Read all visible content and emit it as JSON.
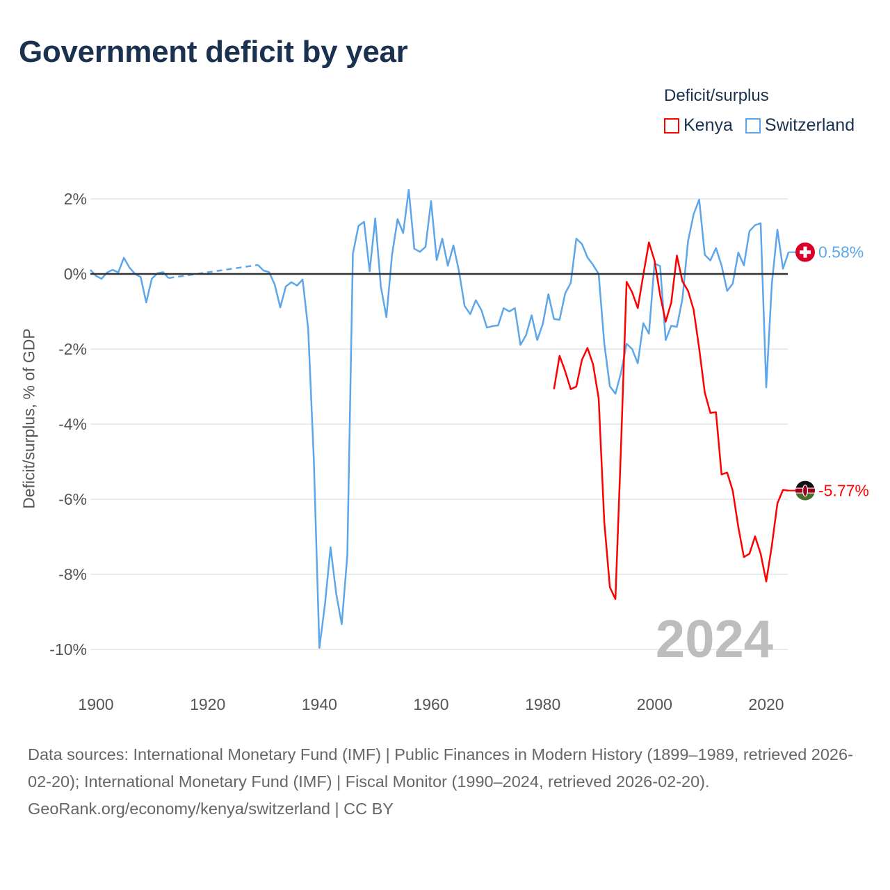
{
  "title": "Government deficit by year",
  "legend": {
    "title": "Deficit/surplus",
    "items": [
      {
        "name": "Kenya",
        "color": "#ff0000"
      },
      {
        "name": "Switzerland",
        "color": "#5ea6ea"
      }
    ]
  },
  "footer": {
    "sources": "Data sources: International Monetary Fund (IMF) | Public Finances in Modern History (1899–1989, retrieved 2026-02-20); International Monetary Fund (IMF) | Fiscal Monitor (1990–2024, retrieved 2026-02-20).",
    "credit": "GeoRank.org/economy/kenya/switzerland | CC BY"
  },
  "chart_data": {
    "type": "line",
    "title": "Government deficit by year",
    "xlabel": "",
    "ylabel": "Deficit/surplus, % of GDP",
    "xlim": [
      1899,
      2024
    ],
    "ylim": [
      -10,
      2
    ],
    "grid": true,
    "legend_position": "top-right",
    "x_ticks": [
      1900,
      1920,
      1940,
      1960,
      1980,
      2000,
      2020
    ],
    "x_tick_labels": [
      "1900",
      "1920",
      "1940",
      "1960",
      "1980",
      "2000",
      "2020"
    ],
    "y_ticks": [
      2,
      0,
      -2,
      -4,
      -6,
      -8,
      -10
    ],
    "y_tick_labels": [
      "2%",
      "0%",
      "-2%",
      "-4%",
      "-6%",
      "-8%",
      "-10%"
    ],
    "year_annotation": "2024",
    "series": [
      {
        "name": "Switzerland",
        "color": "#5ea6ea",
        "flag_icon": "switzerland-flag-icon",
        "end_label": "0.58%",
        "start_year": 1899,
        "values": [
          0.11,
          -0.05,
          -0.13,
          0.04,
          0.11,
          0.04,
          0.43,
          0.17,
          0,
          -0.08,
          -0.76,
          -0.13,
          0.02,
          0.05,
          -0.11,
          null,
          null,
          null,
          null,
          null,
          null,
          null,
          null,
          null,
          null,
          null,
          null,
          null,
          null,
          null,
          0.24,
          0.09,
          0.05,
          -0.28,
          -0.89,
          -0.33,
          -0.22,
          -0.31,
          -0.15,
          -1.47,
          -4.93,
          -9.96,
          -8.8,
          -7.28,
          -8.5,
          -9.33,
          -7.5,
          0.54,
          1.28,
          1.39,
          0.07,
          1.48,
          -0.33,
          -1.15,
          0.5,
          1.46,
          1.09,
          2.24,
          0.67,
          0.59,
          0.72,
          1.94,
          0.37,
          0.94,
          0.22,
          0.76,
          0.07,
          -0.85,
          -1.07,
          -0.7,
          -0.96,
          -1.43,
          -1.39,
          -1.37,
          -0.91,
          -1.0,
          -0.91,
          -1.89,
          -1.63,
          -1.1,
          -1.76,
          -1.33,
          -0.54,
          -1.2,
          -1.22,
          -0.52,
          -0.24,
          0.94,
          0.8,
          0.44,
          0.24,
          0.0,
          -1.84,
          -2.99,
          -3.19,
          -2.63,
          -1.86,
          -2.0,
          -2.38,
          -1.31,
          -1.59,
          0.28,
          0.21,
          -1.76,
          -1.38,
          -1.41,
          -0.66,
          0.87,
          1.59,
          1.98,
          0.51,
          0.36,
          0.69,
          0.23,
          -0.45,
          -0.26,
          0.57,
          0.23,
          1.14,
          1.3,
          1.35,
          -3.02,
          -0.27,
          1.18,
          0.14,
          0.58
        ]
      },
      {
        "name": "Kenya",
        "color": "#ff0000",
        "flag_icon": "kenya-flag-icon",
        "end_label": "-5.77%",
        "start_year": 1982,
        "values": [
          -3.07,
          -2.18,
          -2.59,
          -3.07,
          -3.0,
          -2.29,
          -1.97,
          -2.41,
          -3.31,
          -6.59,
          -8.34,
          -8.66,
          -4.6,
          -0.21,
          -0.49,
          -0.91,
          -0.02,
          0.84,
          0.36,
          -0.56,
          -1.27,
          -0.76,
          0.49,
          -0.2,
          -0.45,
          -0.95,
          -1.99,
          -3.16,
          -3.7,
          -3.68,
          -5.34,
          -5.29,
          -5.77,
          -6.74,
          -7.54,
          -7.45,
          -6.99,
          -7.45,
          -8.19,
          -7.24,
          -6.11,
          -5.75,
          -5.77
        ]
      }
    ]
  }
}
